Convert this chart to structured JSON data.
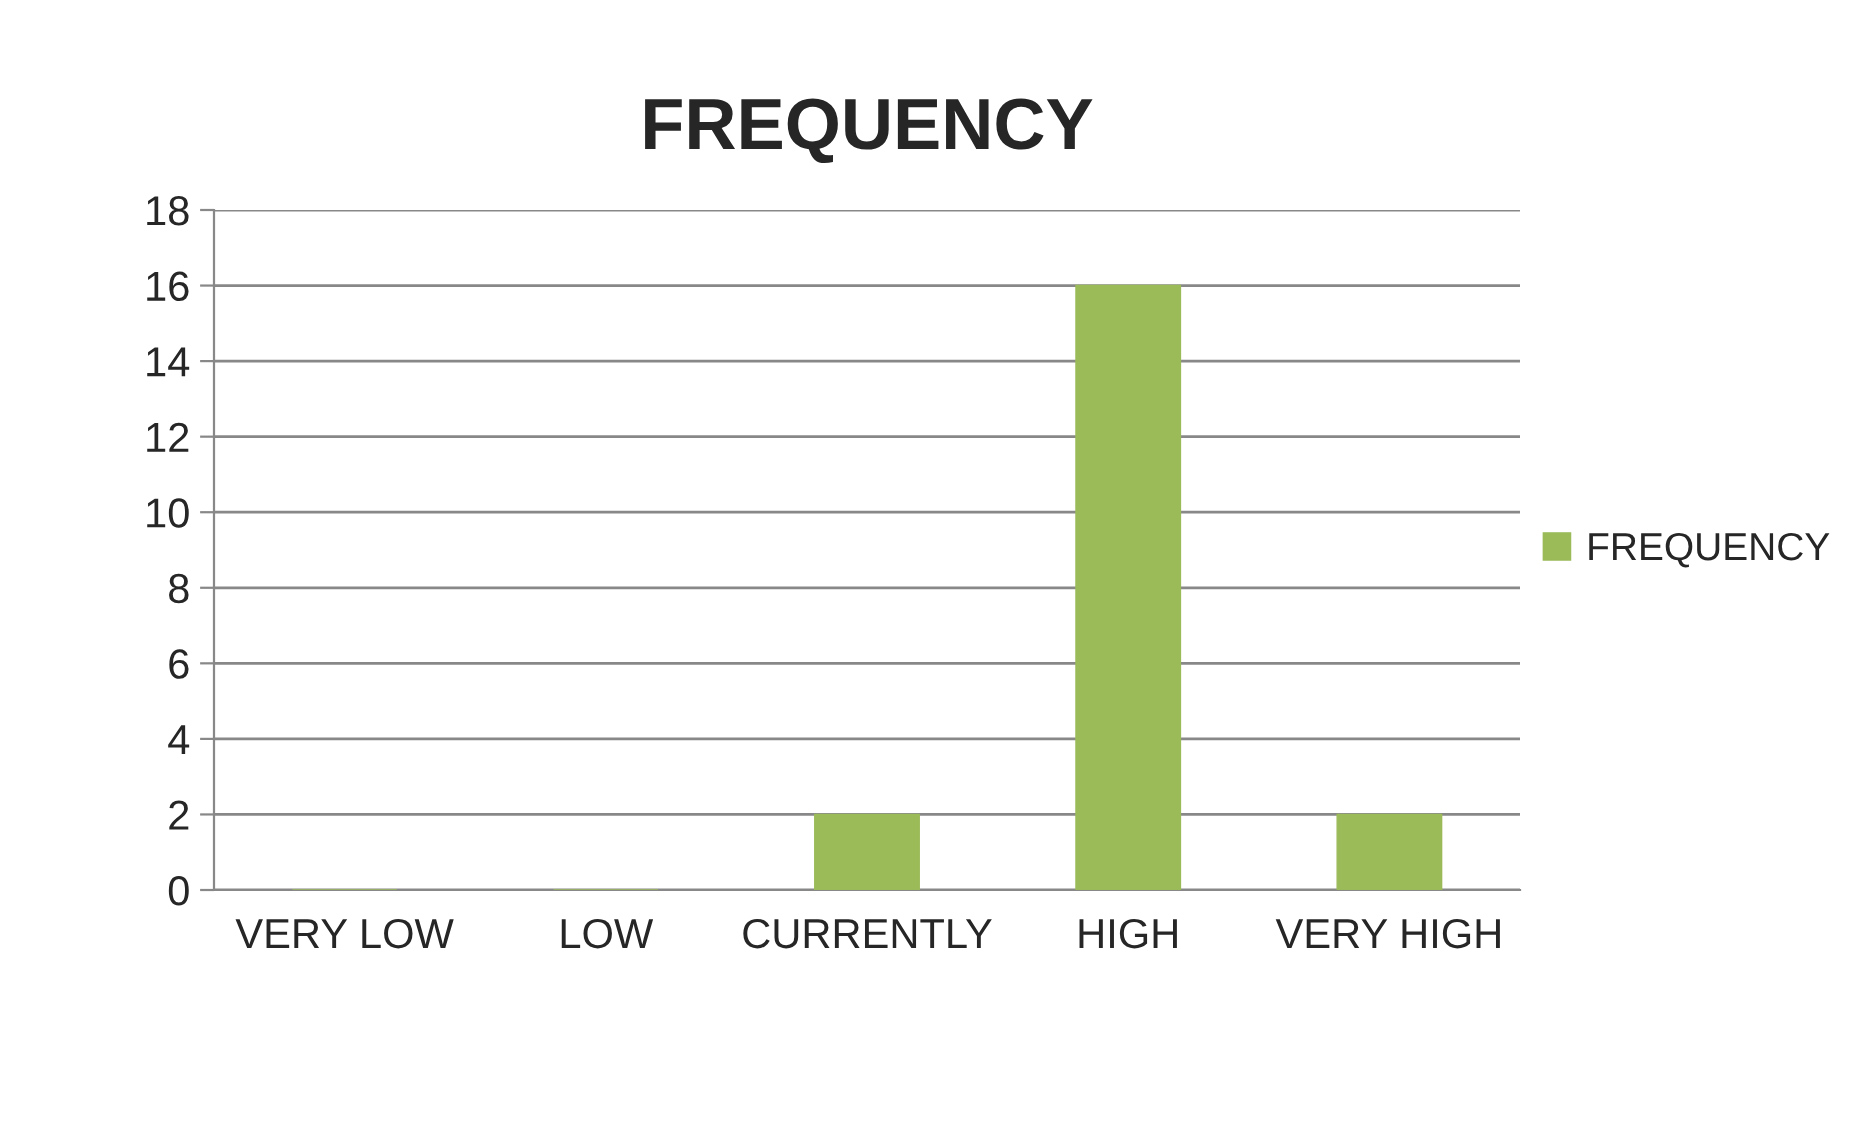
{
  "chart_data": {
    "type": "bar",
    "title": "FREQUENCY",
    "categories": [
      "VERY LOW",
      "LOW",
      "CURRENTLY",
      "HIGH",
      "VERY HIGH"
    ],
    "series": [
      {
        "name": "FREQUENCY",
        "color": "#9bbb59",
        "values": [
          0,
          0,
          2,
          16,
          2
        ]
      }
    ],
    "ylim": [
      0,
      18
    ],
    "yticks": [
      0,
      2,
      4,
      6,
      8,
      10,
      12,
      14,
      16,
      18
    ],
    "grid": "y",
    "legend": "right"
  }
}
